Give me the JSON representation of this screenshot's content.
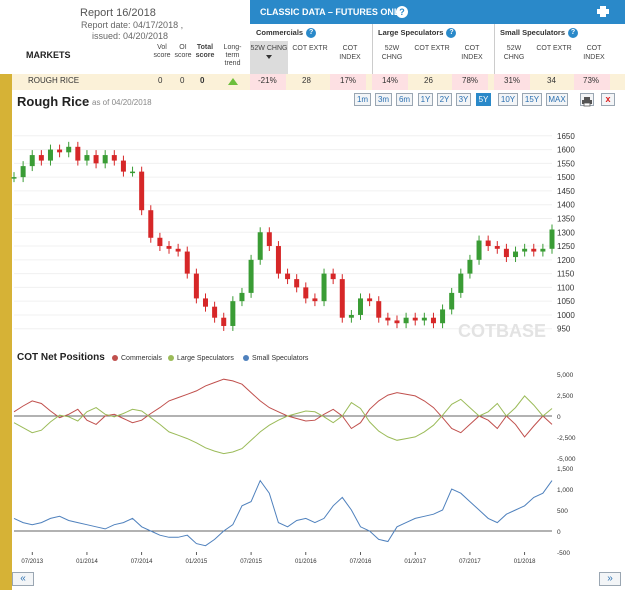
{
  "report": {
    "title": "Report 16/2018",
    "report_date": "Report date: 04/17/2018 ,",
    "issued": "issued: 04/20/2018"
  },
  "table": {
    "markets_label": "MARKETS",
    "col_vol": "Vol score",
    "col_oi": "OI score",
    "col_total": "Total score",
    "col_trend": "Long-term trend"
  },
  "classic": {
    "title": "CLASSIC DATA – FUTURES ONLY",
    "help": "?",
    "groups": [
      "Commercials",
      "Large Speculators",
      "Small Speculators"
    ],
    "sub": {
      "chng": "52W CHNG",
      "extr": "COT EXTR",
      "index": "COT INDEX"
    }
  },
  "row": {
    "market": "ROUGH RICE",
    "vol": "0",
    "oi": "0",
    "total": "0",
    "trend": "up",
    "comm_chng": "-21%",
    "comm_extr": "28",
    "comm_index": "17%",
    "large_chng": "14%",
    "large_extr": "26",
    "large_index": "78%",
    "small_chng": "31%",
    "small_extr": "34",
    "small_index": "73%"
  },
  "chart": {
    "title": "Rough Rice",
    "asof": "as of 04/20/2018",
    "ranges": [
      "1m",
      "3m",
      "6m",
      "1Y",
      "2Y",
      "3Y",
      "5Y",
      "10Y",
      "15Y",
      "MAX"
    ],
    "active_range": "5Y",
    "close_label": "x",
    "watermark": "COTBASE",
    "cot_title": "COT Net Positions",
    "legend": [
      {
        "name": "Commercials",
        "color": "#c0504d"
      },
      {
        "name": "Large Speculators",
        "color": "#9bbb59"
      },
      {
        "name": "Small Speculators",
        "color": "#4f81bd"
      }
    ],
    "prev": "«",
    "next": "»"
  },
  "chart_data": [
    {
      "type": "candlestick",
      "title": "Rough Rice",
      "ylim": [
        920,
        1700
      ],
      "y_ticks": [
        950,
        1000,
        1050,
        1100,
        1150,
        1200,
        1250,
        1300,
        1350,
        1400,
        1450,
        1500,
        1550,
        1600,
        1650
      ],
      "x": [
        "2013-05",
        "2013-06",
        "2013-07",
        "2013-08",
        "2013-09",
        "2013-10",
        "2013-11",
        "2013-12",
        "2014-01",
        "2014-02",
        "2014-03",
        "2014-04",
        "2014-05",
        "2014-06",
        "2014-07",
        "2014-08",
        "2014-09",
        "2014-10",
        "2014-11",
        "2014-12",
        "2015-01",
        "2015-02",
        "2015-03",
        "2015-04",
        "2015-05",
        "2015-06",
        "2015-07",
        "2015-08",
        "2015-09",
        "2015-10",
        "2015-11",
        "2015-12",
        "2016-01",
        "2016-02",
        "2016-03",
        "2016-04",
        "2016-05",
        "2016-06",
        "2016-07",
        "2016-08",
        "2016-09",
        "2016-10",
        "2016-11",
        "2016-12",
        "2017-01",
        "2017-02",
        "2017-03",
        "2017-04",
        "2017-05",
        "2017-06",
        "2017-07",
        "2017-08",
        "2017-09",
        "2017-10",
        "2017-11",
        "2017-12",
        "2018-01",
        "2018-02",
        "2018-03",
        "2018-04"
      ],
      "values": [
        1500,
        1540,
        1580,
        1560,
        1600,
        1590,
        1610,
        1560,
        1580,
        1550,
        1580,
        1560,
        1520,
        1520,
        1380,
        1280,
        1250,
        1240,
        1230,
        1150,
        1060,
        1030,
        990,
        960,
        1050,
        1080,
        1200,
        1300,
        1250,
        1150,
        1130,
        1100,
        1060,
        1050,
        1150,
        1130,
        990,
        1000,
        1060,
        1050,
        990,
        980,
        970,
        990,
        980,
        990,
        970,
        1020,
        1080,
        1150,
        1200,
        1270,
        1250,
        1240,
        1210,
        1230,
        1240,
        1230,
        1240,
        1310
      ]
    },
    {
      "type": "line",
      "title": "COT Net Positions",
      "ylim": [
        -5500,
        5500
      ],
      "y_ticks": [
        -5000,
        -2500,
        0,
        2500,
        5000
      ],
      "x": [
        "2013-05",
        "2013-06",
        "2013-07",
        "2013-08",
        "2013-09",
        "2013-10",
        "2013-11",
        "2013-12",
        "2014-01",
        "2014-02",
        "2014-03",
        "2014-04",
        "2014-05",
        "2014-06",
        "2014-07",
        "2014-08",
        "2014-09",
        "2014-10",
        "2014-11",
        "2014-12",
        "2015-01",
        "2015-02",
        "2015-03",
        "2015-04",
        "2015-05",
        "2015-06",
        "2015-07",
        "2015-08",
        "2015-09",
        "2015-10",
        "2015-11",
        "2015-12",
        "2016-01",
        "2016-02",
        "2016-03",
        "2016-04",
        "2016-05",
        "2016-06",
        "2016-07",
        "2016-08",
        "2016-09",
        "2016-10",
        "2016-11",
        "2016-12",
        "2017-01",
        "2017-02",
        "2017-03",
        "2017-04",
        "2017-05",
        "2017-06",
        "2017-07",
        "2017-08",
        "2017-09",
        "2017-10",
        "2017-11",
        "2017-12",
        "2018-01",
        "2018-02",
        "2018-03",
        "2018-04"
      ],
      "series": [
        {
          "name": "Commercials",
          "color": "#c0504d",
          "values": [
            500,
            1200,
            1800,
            1500,
            600,
            -200,
            200,
            800,
            -500,
            -1000,
            0,
            200,
            -300,
            -800,
            -500,
            300,
            1000,
            1800,
            2200,
            2600,
            3000,
            3600,
            4000,
            4400,
            4200,
            3800,
            2800,
            1800,
            1000,
            500,
            0,
            -300,
            -600,
            -500,
            200,
            800,
            0,
            -1500,
            -800,
            800,
            1800,
            2500,
            2800,
            2600,
            2400,
            1800,
            1000,
            -200,
            -1500,
            -2000,
            -1000,
            0,
            -500,
            -1500,
            0,
            -1000,
            -2500,
            -1200,
            0,
            -1000
          ]
        },
        {
          "name": "Large Speculators",
          "color": "#9bbb59",
          "values": [
            -800,
            -1400,
            -2000,
            -1700,
            -700,
            100,
            -100,
            -600,
            500,
            1000,
            200,
            -100,
            300,
            800,
            600,
            -200,
            -1000,
            -1900,
            -2300,
            -2700,
            -3200,
            -3800,
            -4200,
            -4500,
            -4300,
            -3900,
            -2900,
            -1900,
            -1100,
            -500,
            0,
            300,
            600,
            500,
            -100,
            -800,
            0,
            1600,
            900,
            -700,
            -1800,
            -2500,
            -2900,
            -2700,
            -2500,
            -1900,
            -1100,
            100,
            1400,
            2000,
            1000,
            0,
            500,
            1500,
            0,
            1000,
            2400,
            1300,
            0,
            900
          ]
        },
        {
          "name": "Small Speculators",
          "color": "#4f81bd",
          "values": [
            300,
            200,
            150,
            200,
            300,
            350,
            250,
            200,
            150,
            100,
            50,
            150,
            200,
            300,
            100,
            0,
            -100,
            -150,
            -150,
            -100,
            -300,
            -350,
            -200,
            0,
            150,
            600,
            700,
            1200,
            900,
            200,
            100,
            250,
            300,
            200,
            300,
            600,
            800,
            500,
            100,
            0,
            -200,
            -250,
            100,
            200,
            300,
            350,
            400,
            500,
            1000,
            900,
            700,
            500,
            300,
            200,
            400,
            500,
            600,
            800,
            900,
            1200
          ]
        }
      ]
    }
  ]
}
